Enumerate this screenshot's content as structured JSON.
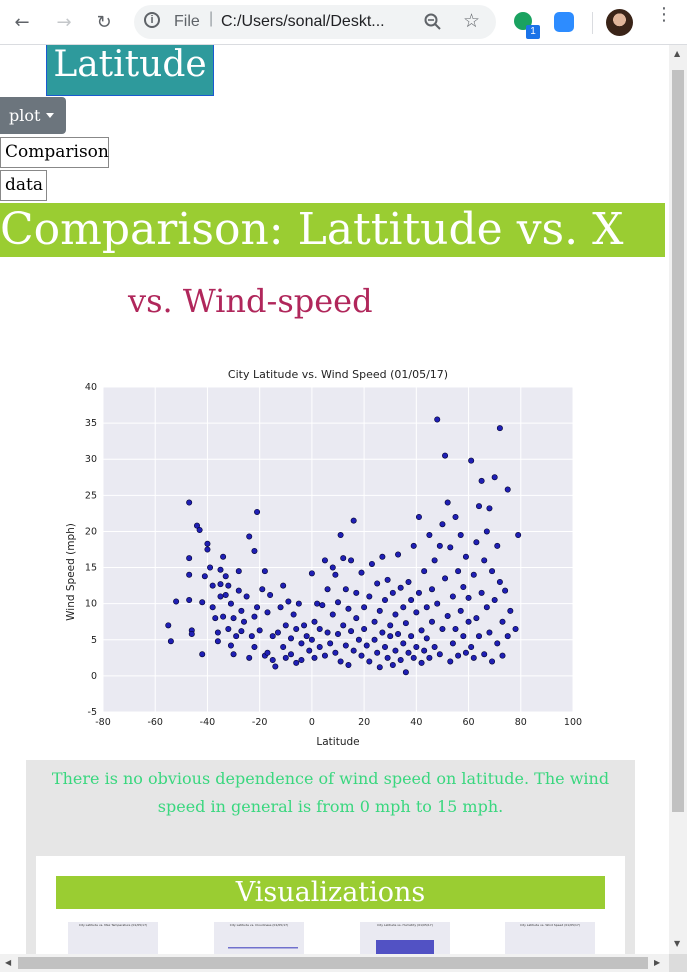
{
  "browser": {
    "url_scheme": "File",
    "url": "C:/Users/sonal/Deskt...",
    "extension_badge": "1"
  },
  "nav": {
    "brand": "Latitude",
    "plot_dropdown": "plot",
    "menu_items": [
      "Comparison",
      "data"
    ]
  },
  "page": {
    "banner": "Comparison: Lattitude vs. X",
    "subtitle": "vs. Wind-speed",
    "description": "There is no obvious dependence of wind speed on latitude. The wind speed in general is from 0 mph to 15 mph.",
    "visualizations_title": "Visualizations"
  },
  "colors": {
    "brand_bg": "#2e9a9c",
    "banner_bg": "#9acd32",
    "subtitle": "#b0275b",
    "description": "#3ad77f",
    "dropdown_bg": "#6c757d",
    "marker": "#1f1fb4"
  },
  "chart_data": {
    "type": "scatter",
    "title": "City Latitude vs. Wind Speed (01/05/17)",
    "xlabel": "Latitude",
    "ylabel": "Wind Speed (mph)",
    "xlim": [
      -80,
      100
    ],
    "ylim": [
      -5,
      40
    ],
    "xticks": [
      -80,
      -60,
      -40,
      -20,
      0,
      20,
      40,
      60,
      80,
      100
    ],
    "yticks": [
      -5,
      0,
      5,
      10,
      15,
      20,
      25,
      30,
      35,
      40
    ],
    "grid": true,
    "points": [
      [
        -55,
        7
      ],
      [
        -54,
        4.8
      ],
      [
        -52,
        10.3
      ],
      [
        -47,
        24
      ],
      [
        -47,
        16.3
      ],
      [
        -47,
        14
      ],
      [
        -47,
        10.5
      ],
      [
        -46,
        6.3
      ],
      [
        -46,
        5.8
      ],
      [
        -44,
        20.8
      ],
      [
        -43,
        20.2
      ],
      [
        -42,
        3
      ],
      [
        -42,
        10.2
      ],
      [
        -41,
        13.8
      ],
      [
        -40,
        18.3
      ],
      [
        -40,
        17.5
      ],
      [
        -39,
        15
      ],
      [
        -38,
        12.5
      ],
      [
        -38,
        9.5
      ],
      [
        -37,
        8
      ],
      [
        -36,
        6
      ],
      [
        -36,
        4.8
      ],
      [
        -35,
        12.7
      ],
      [
        -35,
        11
      ],
      [
        -35,
        14.7
      ],
      [
        -34,
        16.5
      ],
      [
        -34,
        8.2
      ],
      [
        -33,
        13.8
      ],
      [
        -33,
        11.2
      ],
      [
        -32,
        12.5
      ],
      [
        -32,
        6.5
      ],
      [
        -31,
        10
      ],
      [
        -31,
        4.2
      ],
      [
        -30,
        8
      ],
      [
        -30,
        3
      ],
      [
        -29,
        5.5
      ],
      [
        -28,
        14.5
      ],
      [
        -28,
        11.8
      ],
      [
        -27,
        9
      ],
      [
        -27,
        6.2
      ],
      [
        -26,
        7.5
      ],
      [
        -25,
        11
      ],
      [
        -24,
        19.3
      ],
      [
        -24,
        2.5
      ],
      [
        -23,
        5.5
      ],
      [
        -22,
        17.3
      ],
      [
        -22,
        8.2
      ],
      [
        -22,
        4
      ],
      [
        -21,
        22.7
      ],
      [
        -21,
        9.5
      ],
      [
        -20,
        6.3
      ],
      [
        -19,
        12
      ],
      [
        -18,
        2.8
      ],
      [
        -18,
        14.5
      ],
      [
        -17,
        8.8
      ],
      [
        -17,
        3.2
      ],
      [
        -16,
        11.2
      ],
      [
        -15,
        5.5
      ],
      [
        -15,
        2.2
      ],
      [
        -14,
        1.3
      ],
      [
        -13,
        6
      ],
      [
        -12,
        9.5
      ],
      [
        -11,
        12.5
      ],
      [
        -11,
        4
      ],
      [
        -10,
        7
      ],
      [
        -10,
        2.5
      ],
      [
        -9,
        10.3
      ],
      [
        -8,
        5.2
      ],
      [
        -8,
        3
      ],
      [
        -7,
        8.5
      ],
      [
        -6,
        1.8
      ],
      [
        -6,
        6.5
      ],
      [
        -5,
        10
      ],
      [
        -4,
        4.5
      ],
      [
        -4,
        2.2
      ],
      [
        -3,
        7
      ],
      [
        -2,
        5.5
      ],
      [
        -1,
        3.5
      ],
      [
        0,
        14.2
      ],
      [
        0,
        5
      ],
      [
        1,
        7.5
      ],
      [
        1,
        2.5
      ],
      [
        2,
        10
      ],
      [
        3,
        4
      ],
      [
        3,
        6.5
      ],
      [
        4,
        9.8
      ],
      [
        5,
        16
      ],
      [
        5,
        2.8
      ],
      [
        6,
        12
      ],
      [
        6,
        6
      ],
      [
        7,
        4.5
      ],
      [
        8,
        15
      ],
      [
        8,
        8.5
      ],
      [
        9,
        3.2
      ],
      [
        9,
        14
      ],
      [
        10,
        10.2
      ],
      [
        10,
        5.8
      ],
      [
        11,
        19.5
      ],
      [
        11,
        2
      ],
      [
        12,
        16.3
      ],
      [
        12,
        7
      ],
      [
        13,
        12
      ],
      [
        13,
        4.2
      ],
      [
        14,
        9.3
      ],
      [
        14,
        1.5
      ],
      [
        15,
        16
      ],
      [
        15,
        6.2
      ],
      [
        16,
        21.5
      ],
      [
        16,
        3.5
      ],
      [
        17,
        11.5
      ],
      [
        17,
        8
      ],
      [
        18,
        5
      ],
      [
        19,
        14.3
      ],
      [
        19,
        2.8
      ],
      [
        20,
        9.5
      ],
      [
        20,
        6.5
      ],
      [
        21,
        4.2
      ],
      [
        22,
        11
      ],
      [
        22,
        2
      ],
      [
        23,
        15.5
      ],
      [
        24,
        7.5
      ],
      [
        24,
        5
      ],
      [
        25,
        12.8
      ],
      [
        25,
        3.2
      ],
      [
        26,
        9
      ],
      [
        26,
        1.2
      ],
      [
        27,
        16.5
      ],
      [
        27,
        6
      ],
      [
        28,
        4
      ],
      [
        28,
        10.5
      ],
      [
        29,
        13.3
      ],
      [
        29,
        2.5
      ],
      [
        30,
        7
      ],
      [
        30,
        5.5
      ],
      [
        31,
        11.5
      ],
      [
        31,
        1.5
      ],
      [
        32,
        3.5
      ],
      [
        32,
        8.5
      ],
      [
        33,
        16.8
      ],
      [
        33,
        5.8
      ],
      [
        34,
        12.2
      ],
      [
        34,
        2.2
      ],
      [
        35,
        9.5
      ],
      [
        35,
        4.5
      ],
      [
        36,
        7.3
      ],
      [
        36,
        0.5
      ],
      [
        37,
        13
      ],
      [
        37,
        3.2
      ],
      [
        38,
        10.5
      ],
      [
        38,
        5.5
      ],
      [
        39,
        18
      ],
      [
        39,
        2.5
      ],
      [
        40,
        8.8
      ],
      [
        40,
        4
      ],
      [
        41,
        22
      ],
      [
        41,
        11.5
      ],
      [
        42,
        6.3
      ],
      [
        42,
        1.8
      ],
      [
        43,
        14.5
      ],
      [
        43,
        3.5
      ],
      [
        44,
        9.5
      ],
      [
        44,
        5.2
      ],
      [
        45,
        19.5
      ],
      [
        45,
        2.5
      ],
      [
        46,
        12
      ],
      [
        46,
        7.5
      ],
      [
        47,
        4
      ],
      [
        47,
        16
      ],
      [
        48,
        35.5
      ],
      [
        48,
        10
      ],
      [
        49,
        18
      ],
      [
        49,
        3
      ],
      [
        50,
        21
      ],
      [
        50,
        6.5
      ],
      [
        51,
        30.5
      ],
      [
        51,
        13.5
      ],
      [
        52,
        24
      ],
      [
        52,
        8.3
      ],
      [
        53,
        2
      ],
      [
        53,
        17.8
      ],
      [
        54,
        11
      ],
      [
        54,
        4.5
      ],
      [
        55,
        22
      ],
      [
        55,
        6.5
      ],
      [
        56,
        14.5
      ],
      [
        56,
        2.8
      ],
      [
        57,
        9
      ],
      [
        57,
        19.5
      ],
      [
        58,
        5.5
      ],
      [
        58,
        12.3
      ],
      [
        59,
        3.2
      ],
      [
        59,
        16.5
      ],
      [
        60,
        7.5
      ],
      [
        60,
        10.8
      ],
      [
        61,
        29.8
      ],
      [
        61,
        4
      ],
      [
        62,
        14
      ],
      [
        62,
        2.5
      ],
      [
        63,
        18.5
      ],
      [
        63,
        8
      ],
      [
        64,
        23.5
      ],
      [
        64,
        5.5
      ],
      [
        65,
        27
      ],
      [
        65,
        11.5
      ],
      [
        66,
        16
      ],
      [
        66,
        3
      ],
      [
        67,
        20
      ],
      [
        67,
        9.5
      ],
      [
        68,
        23.2
      ],
      [
        68,
        6
      ],
      [
        69,
        14.5
      ],
      [
        69,
        2
      ],
      [
        70,
        27.5
      ],
      [
        70,
        10.5
      ],
      [
        71,
        18
      ],
      [
        71,
        4.5
      ],
      [
        72,
        34.3
      ],
      [
        72,
        13
      ],
      [
        73,
        7.5
      ],
      [
        73,
        2.8
      ],
      [
        74,
        11.8
      ],
      [
        75,
        25.8
      ],
      [
        75,
        5.5
      ],
      [
        76,
        9
      ],
      [
        78,
        6.5
      ],
      [
        79,
        19.5
      ]
    ]
  },
  "thumbnail_titles": [
    "City Latitude vs. Max Temperature (01/05/17)",
    "City Latitude vs. Cloudiness (01/05/17)",
    "City Latitude vs. Humidity (01/05/17)",
    "City Latitude vs. Wind Speed (01/05/17)"
  ]
}
